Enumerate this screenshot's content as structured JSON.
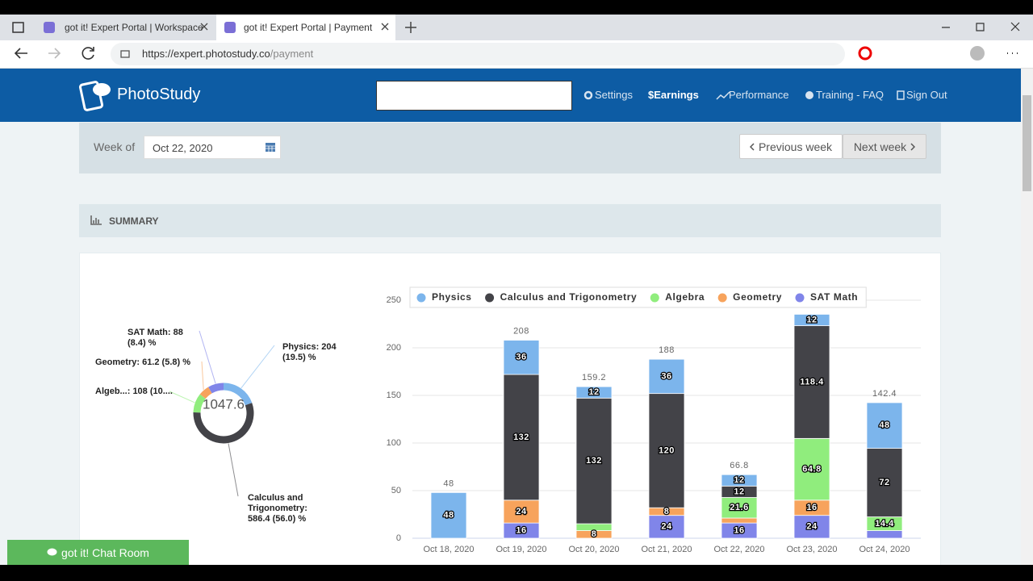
{
  "browser": {
    "tabs": [
      "got it! Expert Portal | Workspace",
      "got it! Expert Portal | Payment"
    ],
    "url_host": "https://expert.photostudy.co",
    "url_path": "/payment"
  },
  "nav": {
    "brand": "PhotoStudy",
    "links": [
      "Settings",
      "$Earnings",
      "Performance",
      "Training - FAQ",
      "Sign Out"
    ]
  },
  "week": {
    "label": "Week of",
    "date": "Oct 22, 2020",
    "previous": "Previous week",
    "next": "Next week"
  },
  "summary": {
    "title": "SUMMARY"
  },
  "chat": "got it! Chat Room",
  "chart_data": [
    {
      "type": "donut",
      "categories": [
        "Physics",
        "Calculus and Trigonometry",
        "Algebra",
        "Geometry",
        "SAT Math"
      ],
      "values": [
        204,
        586.4,
        108,
        61.2,
        88
      ],
      "colors": [
        "#7cb5ec",
        "#434348",
        "#90ed7d",
        "#f7a35c",
        "#8085e9"
      ],
      "labels": [
        "Physics: 204 (19.5) %",
        "Calculus and Trigonometry: 586.4 (56.0) %",
        "Algeb...: 108 (10....",
        "Geometry: 61.2 (5.8) %",
        "SAT Math: 88 (8.4) %"
      ],
      "total": 1047.6
    },
    {
      "type": "bar",
      "stacked": true,
      "categories": [
        "Oct 18, 2020",
        "Oct 19, 2020",
        "Oct 20, 2020",
        "Oct 21, 2020",
        "Oct 22, 2020",
        "Oct 23, 2020",
        "Oct 24, 2020"
      ],
      "series": [
        {
          "name": "Physics",
          "color": "#7cb5ec",
          "values": [
            48,
            36,
            12,
            36,
            12,
            12,
            48
          ],
          "value_labels": [
            "48",
            "36",
            "12",
            "36",
            "12",
            "12",
            "48"
          ]
        },
        {
          "name": "Calculus and Trigonometry",
          "color": "#434348",
          "values": [
            0,
            132,
            132,
            120,
            12,
            118.4,
            72
          ],
          "value_labels": [
            null,
            "132",
            "132",
            "120",
            "12",
            "118.4",
            "72"
          ]
        },
        {
          "name": "Algebra",
          "color": "#90ed7d",
          "values": [
            0,
            0,
            7.2,
            0,
            21.6,
            64.8,
            14.4
          ],
          "value_labels": [
            null,
            null,
            null,
            null,
            "21.6",
            "64.8",
            "14.4"
          ]
        },
        {
          "name": "Geometry",
          "color": "#f7a35c",
          "values": [
            0,
            24,
            8,
            8,
            5.2,
            16,
            0
          ],
          "value_labels": [
            null,
            "24",
            "8",
            "8",
            null,
            "16",
            null
          ]
        },
        {
          "name": "SAT Math",
          "color": "#8085e9",
          "values": [
            0,
            16,
            0,
            24,
            16,
            24,
            8
          ],
          "value_labels": [
            null,
            "16",
            null,
            "24",
            "16",
            "24",
            null
          ]
        }
      ],
      "totals": [
        48,
        208,
        159.2,
        188,
        66.8,
        235.2,
        142.4
      ],
      "ylim": [
        0,
        250
      ],
      "yticks": [
        0,
        50,
        100,
        150,
        200,
        250
      ],
      "grid": true,
      "legend": "top"
    }
  ]
}
